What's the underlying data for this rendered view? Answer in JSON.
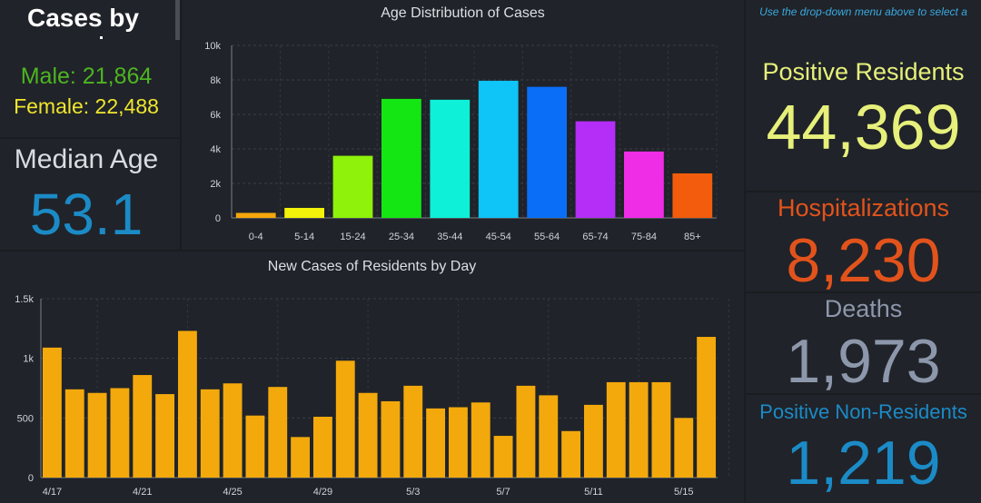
{
  "cases_by": {
    "title": "Cases by",
    "male": "Male: 21,864",
    "female": "Female: 22,488"
  },
  "median_age": {
    "label": "Median Age",
    "value": "53.1"
  },
  "ticker": "Use the drop-down menu above to select a",
  "stats": {
    "positive_residents": {
      "label": "Positive Residents",
      "value": "44,369",
      "color": "#e6f07a"
    },
    "hospitalizations": {
      "label": "Hospitalizations",
      "value": "8,230",
      "color": "#e2531c"
    },
    "deaths": {
      "label": "Deaths",
      "value": "1,973",
      "color": "#8d97ab"
    },
    "non_residents": {
      "label": "Positive Non-Residents",
      "value": "1,219",
      "color": "#1b8bc7"
    }
  },
  "colors": {
    "background": "#1a1c20",
    "panel": "#202329",
    "daily_bar": "#f3a90c"
  },
  "chart_data": [
    {
      "type": "bar",
      "title": "Age Distribution of Cases",
      "categories": [
        "0-4",
        "5-14",
        "15-24",
        "25-34",
        "35-44",
        "45-54",
        "55-64",
        "65-74",
        "75-84",
        "85+"
      ],
      "values": [
        290,
        580,
        3600,
        6900,
        6850,
        7950,
        7600,
        5600,
        3850,
        2580
      ],
      "colors": [
        "#f5a60c",
        "#f2f20a",
        "#8ef20a",
        "#14e614",
        "#0ff0d8",
        "#0fc4f7",
        "#0a6ef7",
        "#b42ef7",
        "#ef2ce6",
        "#f25c0c"
      ],
      "ylim": [
        0,
        10000
      ],
      "yticks": [
        "0",
        "2k",
        "4k",
        "6k",
        "8k",
        "10k"
      ],
      "xlabel": "",
      "ylabel": "",
      "grid": true,
      "legend": "none"
    },
    {
      "type": "bar",
      "title": "New Cases of Residents by Day",
      "categories": [
        "4/17",
        "4/18",
        "4/19",
        "4/20",
        "4/21",
        "4/22",
        "4/23",
        "4/24",
        "4/25",
        "4/26",
        "4/27",
        "4/28",
        "4/29",
        "4/30",
        "5/1",
        "5/2",
        "5/3",
        "5/4",
        "5/5",
        "5/6",
        "5/7",
        "5/8",
        "5/9",
        "5/10",
        "5/11",
        "5/12",
        "5/13",
        "5/14",
        "5/15",
        "5/16"
      ],
      "values": [
        1090,
        740,
        710,
        750,
        860,
        700,
        1230,
        740,
        790,
        520,
        760,
        340,
        510,
        980,
        710,
        640,
        770,
        580,
        590,
        630,
        350,
        770,
        690,
        390,
        610,
        800,
        800,
        800,
        500,
        1180
      ],
      "xticks": [
        "4/17",
        "4/21",
        "4/25",
        "4/29",
        "5/3",
        "5/7",
        "5/11",
        "5/15"
      ],
      "ylim": [
        0,
        1500
      ],
      "yticks": [
        "0",
        "500",
        "1k",
        "1.5k"
      ],
      "xlabel": "",
      "ylabel": "",
      "grid": true,
      "legend": "none"
    }
  ]
}
